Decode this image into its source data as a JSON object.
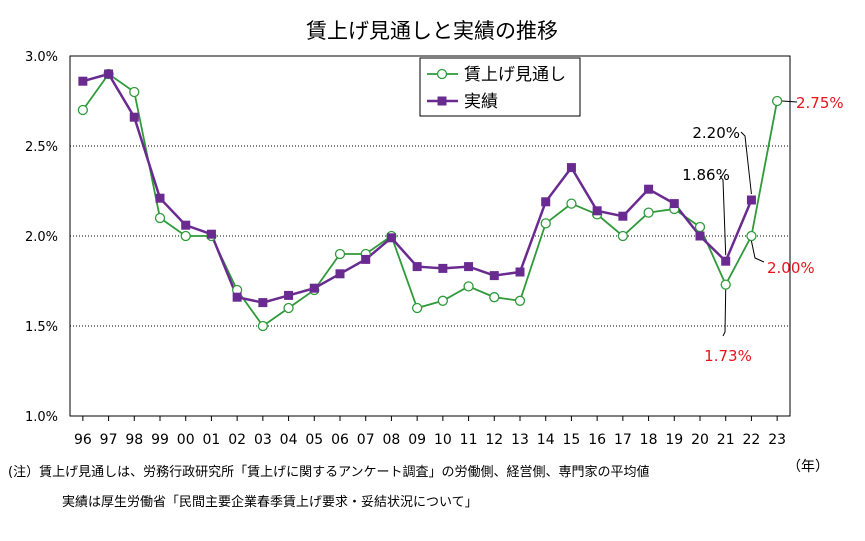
{
  "chart_data": {
    "type": "line",
    "title": "賃上げ見通しと実績の推移",
    "x": [
      "96",
      "97",
      "98",
      "99",
      "00",
      "01",
      "02",
      "03",
      "04",
      "05",
      "06",
      "07",
      "08",
      "09",
      "10",
      "11",
      "12",
      "13",
      "14",
      "15",
      "16",
      "17",
      "18",
      "19",
      "20",
      "21",
      "22",
      "23"
    ],
    "xunit": "（年）",
    "ylim": [
      1.0,
      3.0
    ],
    "yticks": [
      "1.0%",
      "1.5%",
      "2.0%",
      "2.5%",
      "3.0%"
    ],
    "grid": "horizontal dotted",
    "legend_position": "top-center",
    "series": [
      {
        "name": "賃上げ見通し",
        "color": "#2e9a3a",
        "marker": "hollow-circle",
        "values": [
          2.7,
          2.9,
          2.8,
          2.1,
          2.0,
          2.0,
          1.7,
          1.5,
          1.6,
          1.7,
          1.9,
          1.9,
          2.0,
          1.6,
          1.64,
          1.72,
          1.66,
          1.64,
          2.07,
          2.18,
          2.12,
          2.0,
          2.13,
          2.15,
          2.05,
          1.73,
          2.0,
          2.75
        ]
      },
      {
        "name": "実績",
        "color": "#6a2b91",
        "marker": "filled-square",
        "values": [
          2.86,
          2.9,
          2.66,
          2.21,
          2.06,
          2.01,
          1.66,
          1.63,
          1.67,
          1.71,
          1.79,
          1.87,
          1.99,
          1.83,
          1.82,
          1.83,
          1.78,
          1.8,
          2.19,
          2.38,
          2.14,
          2.11,
          2.26,
          2.18,
          2.0,
          1.86,
          2.2,
          null
        ]
      }
    ],
    "annotations": [
      {
        "text": "2.75%",
        "color": "#e8141c"
      },
      {
        "text": "2.20%",
        "color": "#000000"
      },
      {
        "text": "1.86%",
        "color": "#000000"
      },
      {
        "text": "2.00%",
        "color": "#e8141c"
      },
      {
        "text": "1.73%",
        "color": "#e8141c"
      }
    ]
  },
  "notes": {
    "line1": "(注）賃上げ見通しは、労務行政研究所「賃上げに関するアンケート調査」の労働側、経営側、専門家の平均値",
    "line2": "実績は厚生労働省「民間主要企業春季賃上げ要求・妥結状況について」"
  }
}
